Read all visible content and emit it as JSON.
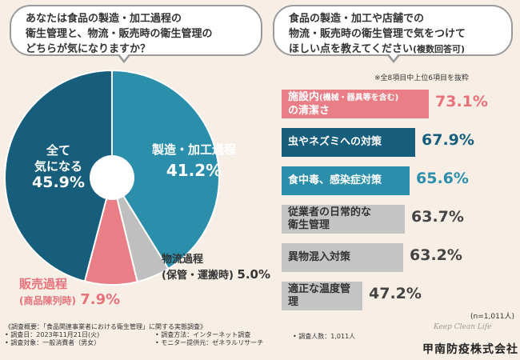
{
  "left_question": {
    "line1": "あなたは食品の製造・加工過程の",
    "line2": "衛生管理と、物流・販売時の衛生管理の",
    "line3": "どちらが気になりますか？"
  },
  "right_question": {
    "line1": "食品の製造・加工や店舗での",
    "line2": "物流・販売時の衛生管理で気をつけて",
    "line3": "ほしい点を教えてください",
    "line3_suffix": "(複数回答可)"
  },
  "top_note": "※全8項目中上位6項目を抜粋",
  "n_note": "(n=1,011人)",
  "colors": {
    "teal": "#2b8fab",
    "navy": "#175d7c",
    "pink": "#e97e86",
    "gray": "#bfbfbf",
    "bar_gray": "#c4c4c4"
  },
  "pie_labels": {
    "all_line1": "全て",
    "all_line2": "気になる",
    "all_value": "45.9%",
    "mfg_line1": "製造・加工過程",
    "mfg_value": "41.2%",
    "logi_line1": "物流過程",
    "logi_line2": "(保管・運搬時)",
    "logi_value": "5.0%",
    "sales_line1": "販売過程",
    "sales_line2": "(商品陳列時)",
    "sales_value": "7.9%"
  },
  "bar_labels": [
    {
      "l1": "施設内",
      "l1b": "(機械・器具等を含む)",
      "l2": "の清潔さ",
      "value": "73.1%"
    },
    {
      "l1": "虫やネズミへの対策",
      "l2": "",
      "value": "67.9%"
    },
    {
      "l1": "食中毒、感染症対策",
      "l2": "",
      "value": "65.6%"
    },
    {
      "l1": "従業者の日常的な",
      "l2": "衛生管理",
      "value": "63.7%"
    },
    {
      "l1": "異物混入対策",
      "l2": "",
      "value": "63.2%"
    },
    {
      "l1": "適正な温度管理",
      "l2": "",
      "value": "47.2%"
    }
  ],
  "chart_data": [
    {
      "type": "pie",
      "categories": [
        "製造・加工過程",
        "物流過程(保管・運搬時)",
        "販売過程(商品陳列時)",
        "全て気になる"
      ],
      "values": [
        41.2,
        5.0,
        7.9,
        45.9
      ],
      "colors": [
        "#2b8fab",
        "#bfbfbf",
        "#e97e86",
        "#175d7c"
      ],
      "unit": "%"
    },
    {
      "type": "bar",
      "orientation": "horizontal",
      "categories": [
        "施設内(機械・器具等を含む)の清潔さ",
        "虫やネズミへの対策",
        "食中毒、感染症対策",
        "従業者の日常的な衛生管理",
        "異物混入対策",
        "適正な温度管理"
      ],
      "values": [
        73.1,
        67.9,
        65.6,
        63.7,
        63.2,
        47.2
      ],
      "colors": [
        "#e97e86",
        "#175d7c",
        "#2b8fab",
        "#c4c4c4",
        "#c4c4c4",
        "#c4c4c4"
      ],
      "unit": "%"
    }
  ],
  "footer": {
    "title": "《調査概要：「食品関連事業者における衛生管理」に関する実態調査》",
    "date": "• 調査日：2023年11月21日(火)",
    "target": "• 調査対象：一般消費者（男女）",
    "method": "• 調査方法：インターネット調査",
    "provider": "• モニター提供元：ゼネラルリサーチ",
    "count": "• 調査人数：1,011人"
  },
  "logo": {
    "script": "Keep Clean Life",
    "name": "甲南防疫株式会社"
  }
}
